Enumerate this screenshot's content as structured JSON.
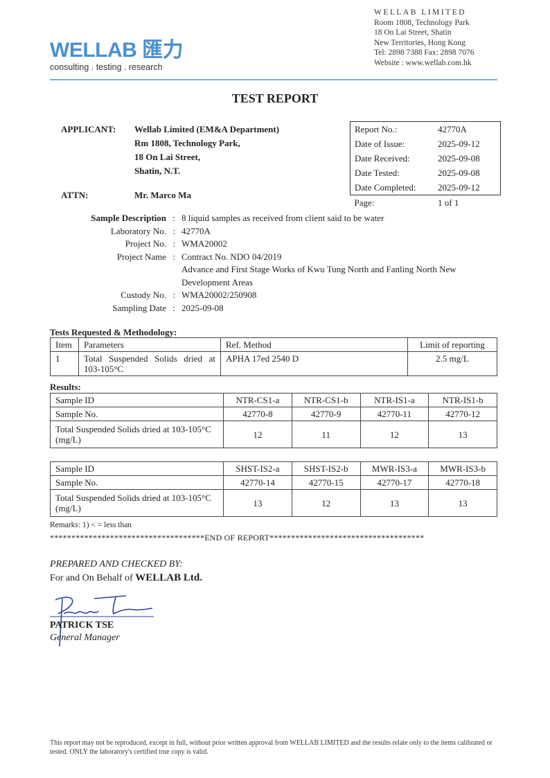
{
  "letterhead": {
    "brand": "WELLAB 匯力",
    "tagline": "consulting . testing . research",
    "company": "WELLAB LIMITED",
    "address": [
      "Room 1808, Technology Park",
      "18 On Lai Street, Shatin",
      "New Territories, Hong Kong"
    ],
    "tel_fax": "Tel: 2898 7388 Fax: 2898 7076",
    "website": "Website : www.wellab.com.hk",
    "accent": "#4a90d0"
  },
  "title": "TEST REPORT",
  "applicant": {
    "label": "APPLICANT:",
    "lines": [
      "Wellab Limited (EM&A Department)",
      "Rm 1808, Technology Park,",
      "18 On Lai Street,",
      "Shatin, N.T."
    ]
  },
  "attn": {
    "label": "ATTN:",
    "name": "Mr. Marco Ma"
  },
  "info": [
    {
      "k": "Report No.:",
      "v": "42770A"
    },
    {
      "k": "Date of Issue:",
      "v": "2025-09-12"
    },
    {
      "k": "Date Received:",
      "v": "2025-09-08"
    },
    {
      "k": "Date Tested:",
      "v": "2025-09-08"
    },
    {
      "k": "Date Completed:",
      "v": "2025-09-12"
    },
    {
      "k": "Page:",
      "v": "1 of 1"
    }
  ],
  "sample": [
    {
      "k": "Sample Description",
      "v": "8 liquid samples as received from client said to be water"
    },
    {
      "k": "Laboratory No.",
      "v": "42770A"
    },
    {
      "k": "Project No.",
      "v": "WMA20002"
    },
    {
      "k": "Project Name",
      "v": "Contract No. NDO 04/2019"
    },
    {
      "k": "",
      "v": "Advance and First Stage Works of Kwu Tung North and Fanling North New"
    },
    {
      "k": "",
      "v": "Development Areas"
    },
    {
      "k": "Custody No.",
      "v": "WMA20002/250908"
    },
    {
      "k": "Sampling Date",
      "v": "2025-09-08"
    }
  ],
  "colon": ":",
  "tests": {
    "heading": "Tests Requested & Methodology:",
    "headers": [
      "Item",
      "Parameters",
      "Ref. Method",
      "Limit of reporting"
    ],
    "rows": [
      [
        "1",
        "Total Suspended Solids dried at 103-105°C",
        "APHA 17ed 2540 D",
        "2.5 mg/L"
      ]
    ]
  },
  "results": {
    "heading": "Results:",
    "tables": [
      {
        "rows": [
          [
            "Sample ID",
            "NTR-CS1-a",
            "NTR-CS1-b",
            "NTR-IS1-a",
            "NTR-IS1-b"
          ],
          [
            "Sample No.",
            "42770-8",
            "42770-9",
            "42770-11",
            "42770-12"
          ],
          [
            "Total Suspended Solids dried at 103-105°C (mg/L)",
            "12",
            "11",
            "12",
            "13"
          ]
        ]
      },
      {
        "rows": [
          [
            "Sample ID",
            "SHST-IS2-a",
            "SHST-IS2-b",
            "MWR-IS3-a",
            "MWR-IS3-b"
          ],
          [
            "Sample No.",
            "42770-14",
            "42770-15",
            "42770-17",
            "42770-18"
          ],
          [
            "Total Suspended Solids dried at 103-105°C (mg/L)",
            "13",
            "12",
            "13",
            "13"
          ]
        ]
      }
    ]
  },
  "remarks": "Remarks:  1) < = less than",
  "end_of_report": "************************************END OF REPORT************************************",
  "prepared": "PREPARED AND CHECKED BY:",
  "behalf_prefix": "For and On Behalf of ",
  "behalf_company": "WELLAB Ltd.",
  "signatory": {
    "name": "PATRICK TSE",
    "title": "General Manager"
  },
  "footer": "This report may not be reproduced, except in full, without prior written approval from WELLAB LIMITED and the results relate only to the items calibrated or tested. ONLY the laboratory's certified true copy is valid."
}
